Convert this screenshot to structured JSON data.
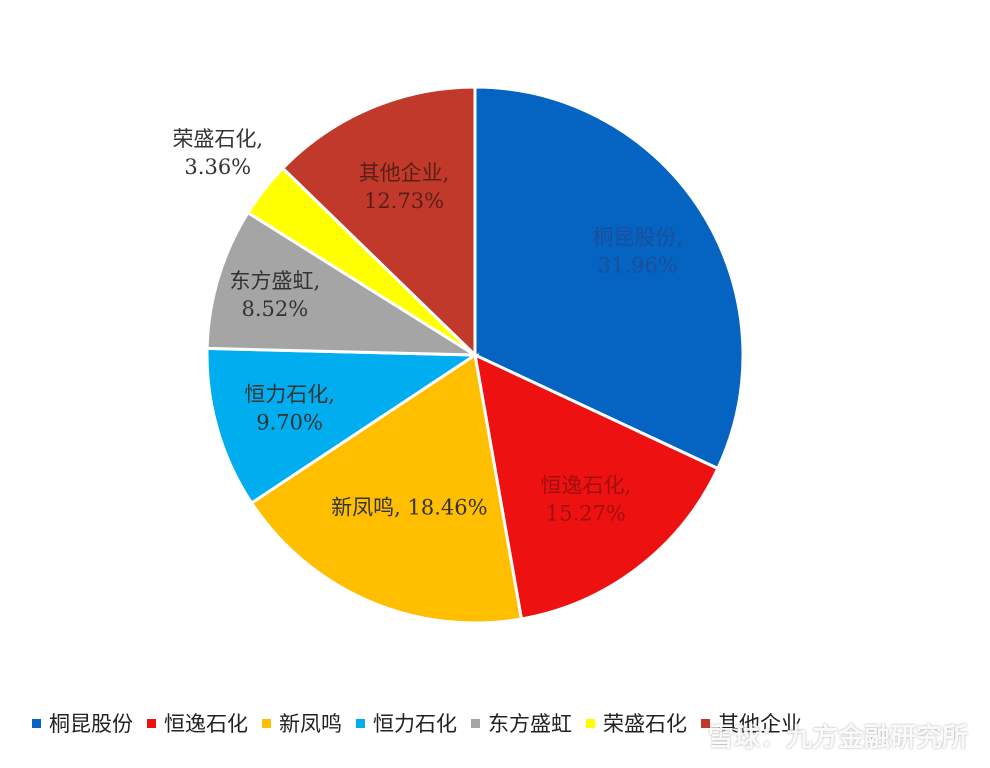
{
  "chart_data": {
    "type": "pie",
    "slices": [
      {
        "label": "桐昆股份",
        "value": 31.96,
        "data_label": "桐昆股份,\n31.96%",
        "color": "#0563C1"
      },
      {
        "label": "恒逸石化",
        "value": 15.27,
        "data_label": "恒逸石化,\n15.27%",
        "color": "#EE1111"
      },
      {
        "label": "新凤鸣",
        "value": 18.46,
        "data_label": "新凤鸣, 18.46%",
        "color": "#FFBF00"
      },
      {
        "label": "恒力石化",
        "value": 9.7,
        "data_label": "恒力石化,\n9.70%",
        "color": "#00AEEF"
      },
      {
        "label": "东方盛虹",
        "value": 8.52,
        "data_label": "东方盛虹,\n8.52%",
        "color": "#A5A5A5"
      },
      {
        "label": "荣盛石化",
        "value": 3.36,
        "data_label": "荣盛石化,\n3.36%",
        "color": "#FFFF00"
      },
      {
        "label": "其他企业",
        "value": 12.73,
        "data_label": "其他企业,\n12.73%",
        "color": "#C0392B"
      }
    ],
    "legend_position": "bottom",
    "start": "top, clockwise"
  },
  "legend": [
    {
      "label": "桐昆股份",
      "color": "#0563C1"
    },
    {
      "label": "恒逸石化",
      "color": "#EE1111"
    },
    {
      "label": "新凤鸣",
      "color": "#FFBF00"
    },
    {
      "label": "恒力石化",
      "color": "#00AEEF"
    },
    {
      "label": "东方盛虹",
      "color": "#A5A5A5"
    },
    {
      "label": "荣盛石化",
      "color": "#FFFF00"
    },
    {
      "label": "其他企业",
      "color": "#C0392B"
    }
  ],
  "watermark": {
    "text": "雪球：九方金融研究所",
    "icon": "snowball-logo-icon"
  }
}
